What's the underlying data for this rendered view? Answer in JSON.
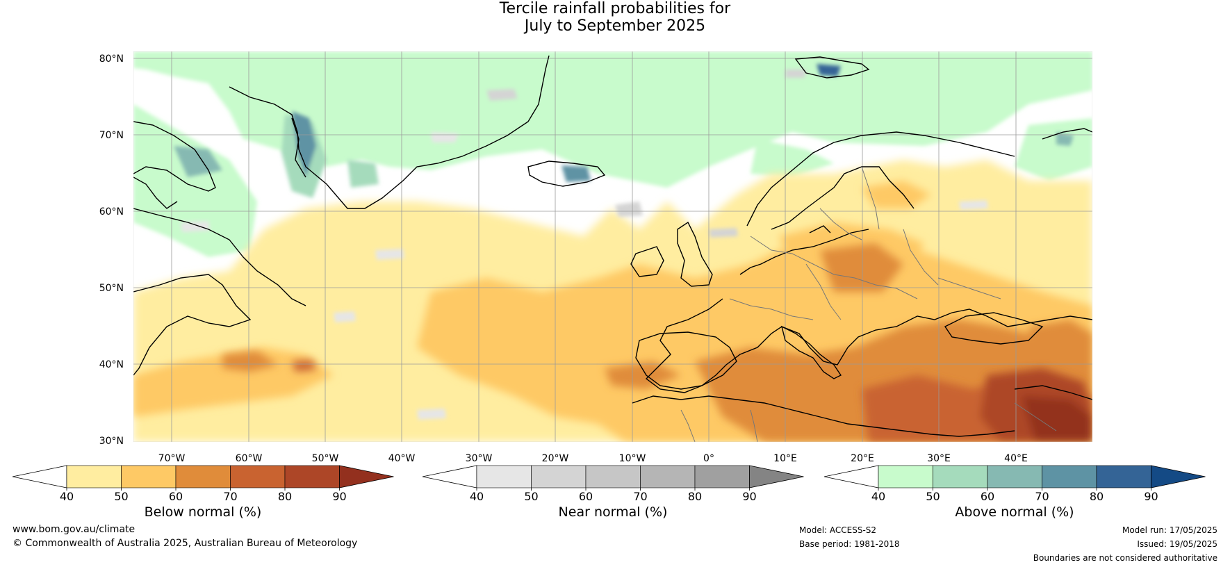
{
  "title": {
    "line1": "Tercile rainfall probabilities for",
    "line2": "July to September 2025"
  },
  "map": {
    "lat_labels": [
      "80°N",
      "70°N",
      "60°N",
      "50°N",
      "40°N",
      "30°N"
    ],
    "lon_labels": [
      "70°W",
      "60°W",
      "50°W",
      "40°W",
      "30°W",
      "20°W",
      "10°W",
      "0°",
      "10°E",
      "20°E",
      "30°E",
      "40°E"
    ]
  },
  "colorbars": [
    {
      "id": "below",
      "label": "Below normal (%)",
      "ticks": [
        "40",
        "50",
        "60",
        "70",
        "80",
        "90"
      ],
      "colors": [
        "#ffffff",
        "#ffeda0",
        "#fec965",
        "#e08c3a",
        "#c96330",
        "#ad4627",
        "#93301e"
      ]
    },
    {
      "id": "near",
      "label": "Near normal (%)",
      "ticks": [
        "40",
        "50",
        "60",
        "70",
        "80",
        "90"
      ],
      "colors": [
        "#ffffff",
        "#e6e6e6",
        "#d4d4d4",
        "#c6c6c6",
        "#b5b5b5",
        "#a0a0a0",
        "#848484"
      ]
    },
    {
      "id": "above",
      "label": "Above normal (%)",
      "ticks": [
        "40",
        "50",
        "60",
        "70",
        "80",
        "90"
      ],
      "colors": [
        "#ffffff",
        "#c8fbcc",
        "#a5dbbc",
        "#86b9b2",
        "#5e93a4",
        "#346496",
        "#144a85"
      ]
    }
  ],
  "footer": {
    "website": "www.bom.gov.au/climate",
    "copyright": "© Commonwealth of Australia 2025, Australian Bureau of Meteorology",
    "model": "Model: ACCESS-S2",
    "base_period": "Base period: 1981-2018",
    "model_run": "Model run: 17/05/2025",
    "issued": "Issued: 19/05/2025",
    "disclaimer": "Boundaries are not considered authoritative"
  }
}
